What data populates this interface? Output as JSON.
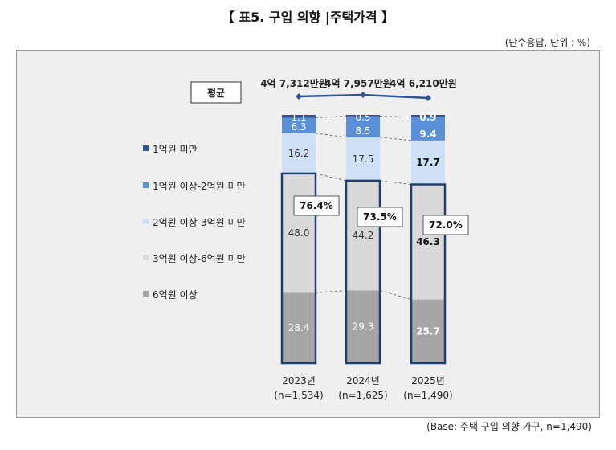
{
  "title": "【 표5. 구입 의향 |주택가격 】",
  "note_top": "(단수응답, 단위 : %)",
  "note_bottom": "(Base: 주택 구입 의향 가구, n=1,490)",
  "avg_label": "평균",
  "chart_data": {
    "type": "bar",
    "stacked": true,
    "unit": "%",
    "categories": [
      "2023년",
      "2024년",
      "2025년"
    ],
    "category_n": [
      "(n=1,534)",
      "(n=1,625)",
      "(n=1,490)"
    ],
    "series": [
      {
        "name": "6억원 이상",
        "color": "#a6a6a6",
        "values": [
          28.4,
          29.3,
          25.7
        ],
        "labels": [
          "28.4",
          "29.3",
          "25.7"
        ]
      },
      {
        "name": "3억원 이상-6억원 미만",
        "color": "#d9d9d9",
        "values": [
          48.0,
          44.2,
          46.3
        ],
        "labels": [
          "48.0",
          "44.2",
          "46.3"
        ]
      },
      {
        "name": "2억원 이상-3억원 미만",
        "color": "#cfe0f6",
        "values": [
          16.2,
          17.5,
          17.7
        ],
        "labels": [
          "16.2",
          "17.5",
          "17.7"
        ]
      },
      {
        "name": "1억원 이상-2억원 미만",
        "color": "#5a90d8",
        "values": [
          6.3,
          8.5,
          9.4
        ],
        "labels": [
          "6.3",
          "8.5",
          "9.4"
        ]
      },
      {
        "name": "1억원 미만",
        "color": "#2f5597",
        "values": [
          1.1,
          0.5,
          0.9
        ],
        "labels": [
          "1.1",
          "0.5",
          "0.9"
        ]
      }
    ],
    "legend_order": [
      "1억원 미만",
      "1억원 이상-2억원 미만",
      "2억원 이상-3억원 미만",
      "3억원 이상-6억원 미만",
      "6억원 이상"
    ],
    "legend_position": "left",
    "highlight_totals": [
      "76.4%",
      "73.5%",
      "72.0%"
    ],
    "averages": [
      "4억 7,312만원",
      "4억 7,957만원",
      "4억 6,210만원"
    ],
    "ylim": [
      0,
      100
    ],
    "grid": false
  }
}
